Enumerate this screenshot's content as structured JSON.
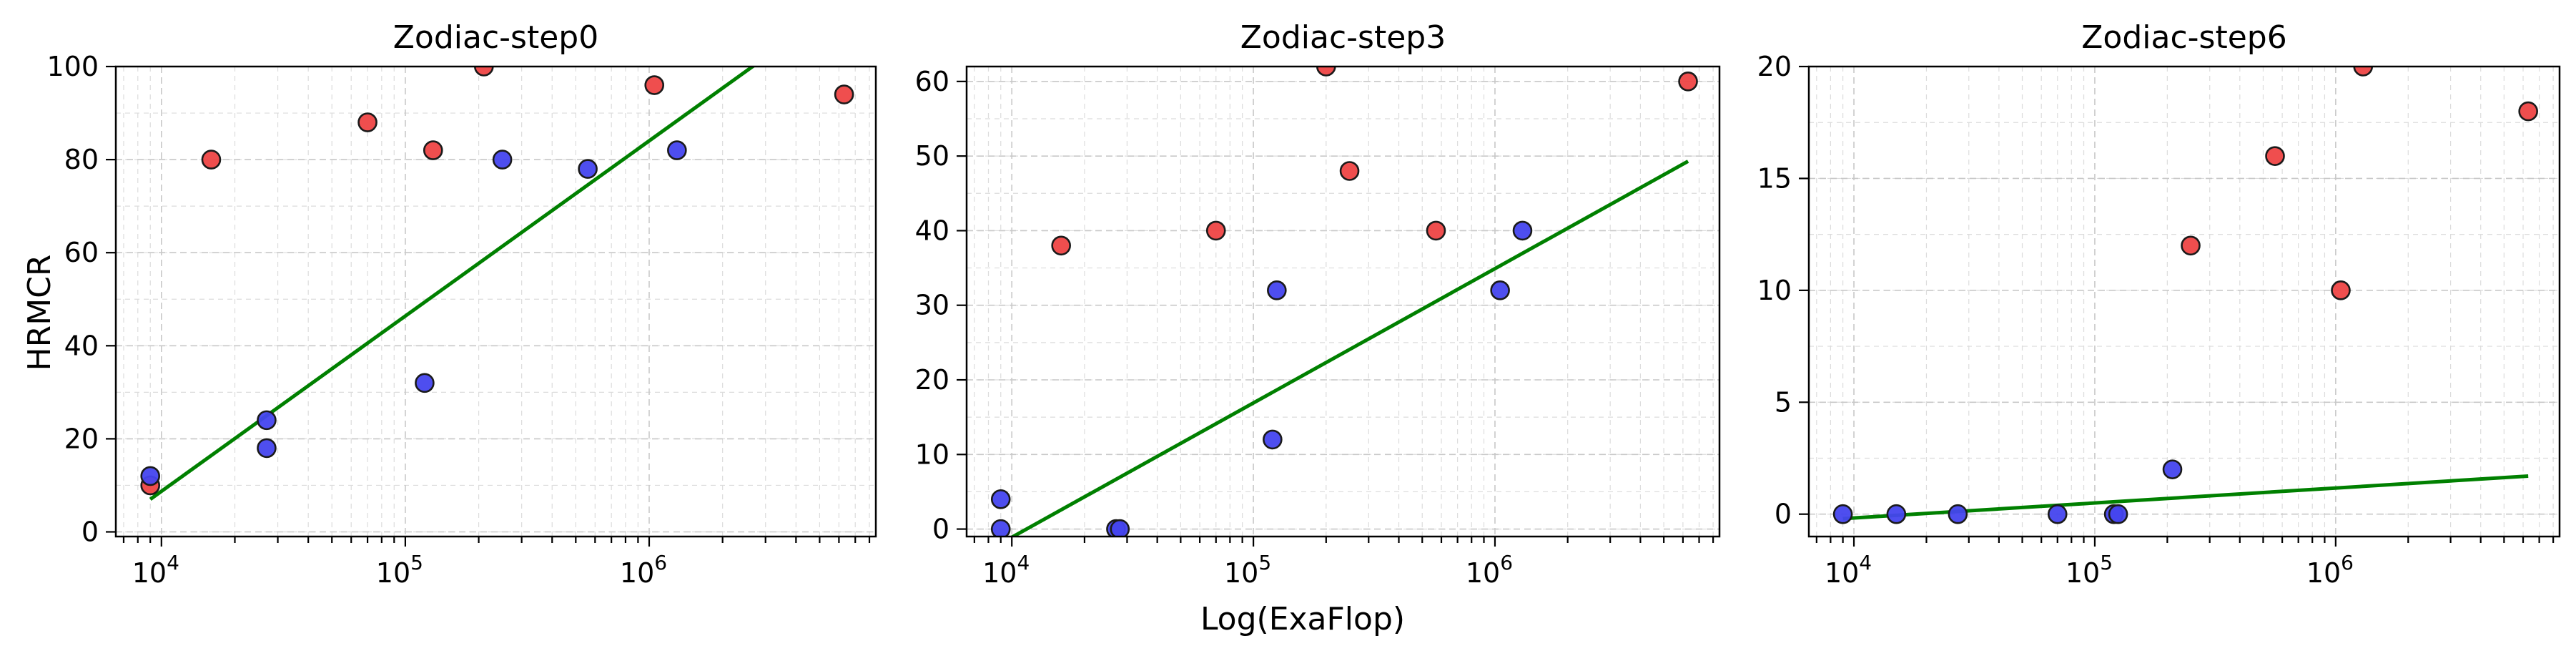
{
  "figure": {
    "shared_ylabel": "HRMCR",
    "shared_xlabel": "Log(ExaFlop)"
  },
  "colors": {
    "series_red": "#ee4444",
    "series_blue": "#4444ee",
    "fit_line": "#008000"
  },
  "chart_data": [
    {
      "type": "scatter",
      "title": "Zodiac-step0",
      "xscale": "log",
      "xlim": [
        6500,
        8500000
      ],
      "ylim": [
        -1,
        100
      ],
      "x_ticks": [
        {
          "v": 10000,
          "b": "10",
          "e": "4"
        },
        {
          "v": 100000,
          "b": "10",
          "e": "5"
        },
        {
          "v": 1000000,
          "b": "10",
          "e": "6"
        }
      ],
      "y_ticks": [
        0,
        20,
        40,
        60,
        80,
        100
      ],
      "grid": true,
      "series": [
        {
          "color": "#ee4444",
          "points": [
            [
              16000,
              80
            ],
            [
              70000,
              88
            ],
            [
              130000,
              82
            ],
            [
              210000,
              100
            ],
            [
              1050000,
              96
            ],
            [
              6300000,
              94
            ],
            [
              9000,
              10
            ]
          ]
        },
        {
          "color": "#4444ee",
          "points": [
            [
              9000,
              12
            ],
            [
              27000,
              24
            ],
            [
              27000,
              18
            ],
            [
              120000,
              32
            ],
            [
              250000,
              80
            ],
            [
              560000,
              78
            ],
            [
              1300000,
              82
            ]
          ]
        }
      ],
      "fit_line": {
        "x": [
          9000,
          3000000
        ],
        "y": [
          7,
          102
        ]
      }
    },
    {
      "type": "scatter",
      "title": "Zodiac-step3",
      "xscale": "log",
      "xlim": [
        6500,
        8500000
      ],
      "ylim": [
        -1,
        62
      ],
      "x_ticks": [
        {
          "v": 10000,
          "b": "10",
          "e": "4"
        },
        {
          "v": 100000,
          "b": "10",
          "e": "5"
        },
        {
          "v": 1000000,
          "b": "10",
          "e": "6"
        }
      ],
      "y_ticks": [
        0,
        10,
        20,
        30,
        40,
        50,
        60
      ],
      "grid": true,
      "series": [
        {
          "color": "#ee4444",
          "points": [
            [
              16000,
              38
            ],
            [
              70000,
              40
            ],
            [
              200000,
              62
            ],
            [
              250000,
              48
            ],
            [
              570000,
              40
            ],
            [
              6300000,
              60
            ]
          ]
        },
        {
          "color": "#4444ee",
          "points": [
            [
              9000,
              4
            ],
            [
              9000,
              0
            ],
            [
              27000,
              0
            ],
            [
              28000,
              0
            ],
            [
              120000,
              12
            ],
            [
              125000,
              32
            ],
            [
              1050000,
              32
            ],
            [
              1300000,
              40
            ]
          ]
        }
      ],
      "fit_line": {
        "x": [
          9500,
          6300000
        ],
        "y": [
          -1.5,
          49.3
        ]
      }
    },
    {
      "type": "scatter",
      "title": "Zodiac-step6",
      "xscale": "log",
      "xlim": [
        6500,
        8500000
      ],
      "ylim": [
        -1,
        20
      ],
      "x_ticks": [
        {
          "v": 10000,
          "b": "10",
          "e": "4"
        },
        {
          "v": 100000,
          "b": "10",
          "e": "5"
        },
        {
          "v": 1000000,
          "b": "10",
          "e": "6"
        }
      ],
      "y_ticks": [
        0,
        5,
        10,
        15,
        20
      ],
      "grid": true,
      "series": [
        {
          "color": "#ee4444",
          "points": [
            [
              250000,
              12
            ],
            [
              560000,
              16
            ],
            [
              1050000,
              10
            ],
            [
              1300000,
              20
            ],
            [
              6300000,
              18
            ]
          ]
        },
        {
          "color": "#4444ee",
          "points": [
            [
              9000,
              0
            ],
            [
              15000,
              0
            ],
            [
              27000,
              0
            ],
            [
              70000,
              0
            ],
            [
              120000,
              0
            ],
            [
              125000,
              0
            ],
            [
              210000,
              2
            ]
          ]
        }
      ],
      "fit_line": {
        "x": [
          9000,
          6300000
        ],
        "y": [
          -0.2,
          1.7
        ]
      }
    }
  ]
}
